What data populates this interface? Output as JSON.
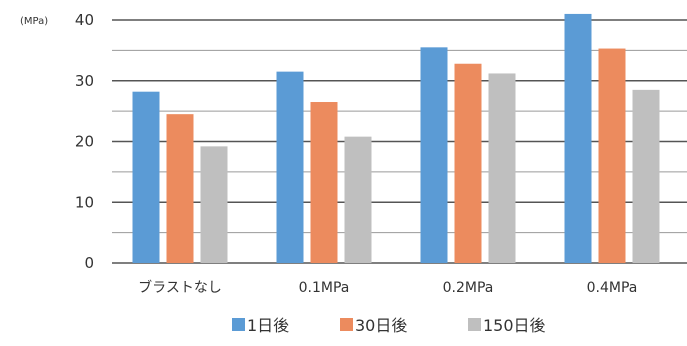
{
  "chart_data": {
    "type": "bar",
    "title": "",
    "xlabel": "",
    "ylabel": "(MPa)",
    "ylim": [
      0,
      40
    ],
    "yticks": [
      0,
      10,
      20,
      30,
      40
    ],
    "grid": true,
    "legend_position": "bottom",
    "categories": [
      "ブラストなし",
      "0.1MPa",
      "0.2MPa",
      "0.4MPa"
    ],
    "series": [
      {
        "name": "1日後",
        "color": "#5b9bd5",
        "values": [
          28.2,
          31.5,
          35.5,
          41.0
        ]
      },
      {
        "name": "30日後",
        "color": "#ec8b5e",
        "values": [
          24.5,
          26.5,
          32.8,
          35.3
        ]
      },
      {
        "name": "150日後",
        "color": "#bfbfbf",
        "values": [
          19.2,
          20.8,
          31.2,
          28.5
        ]
      }
    ]
  }
}
